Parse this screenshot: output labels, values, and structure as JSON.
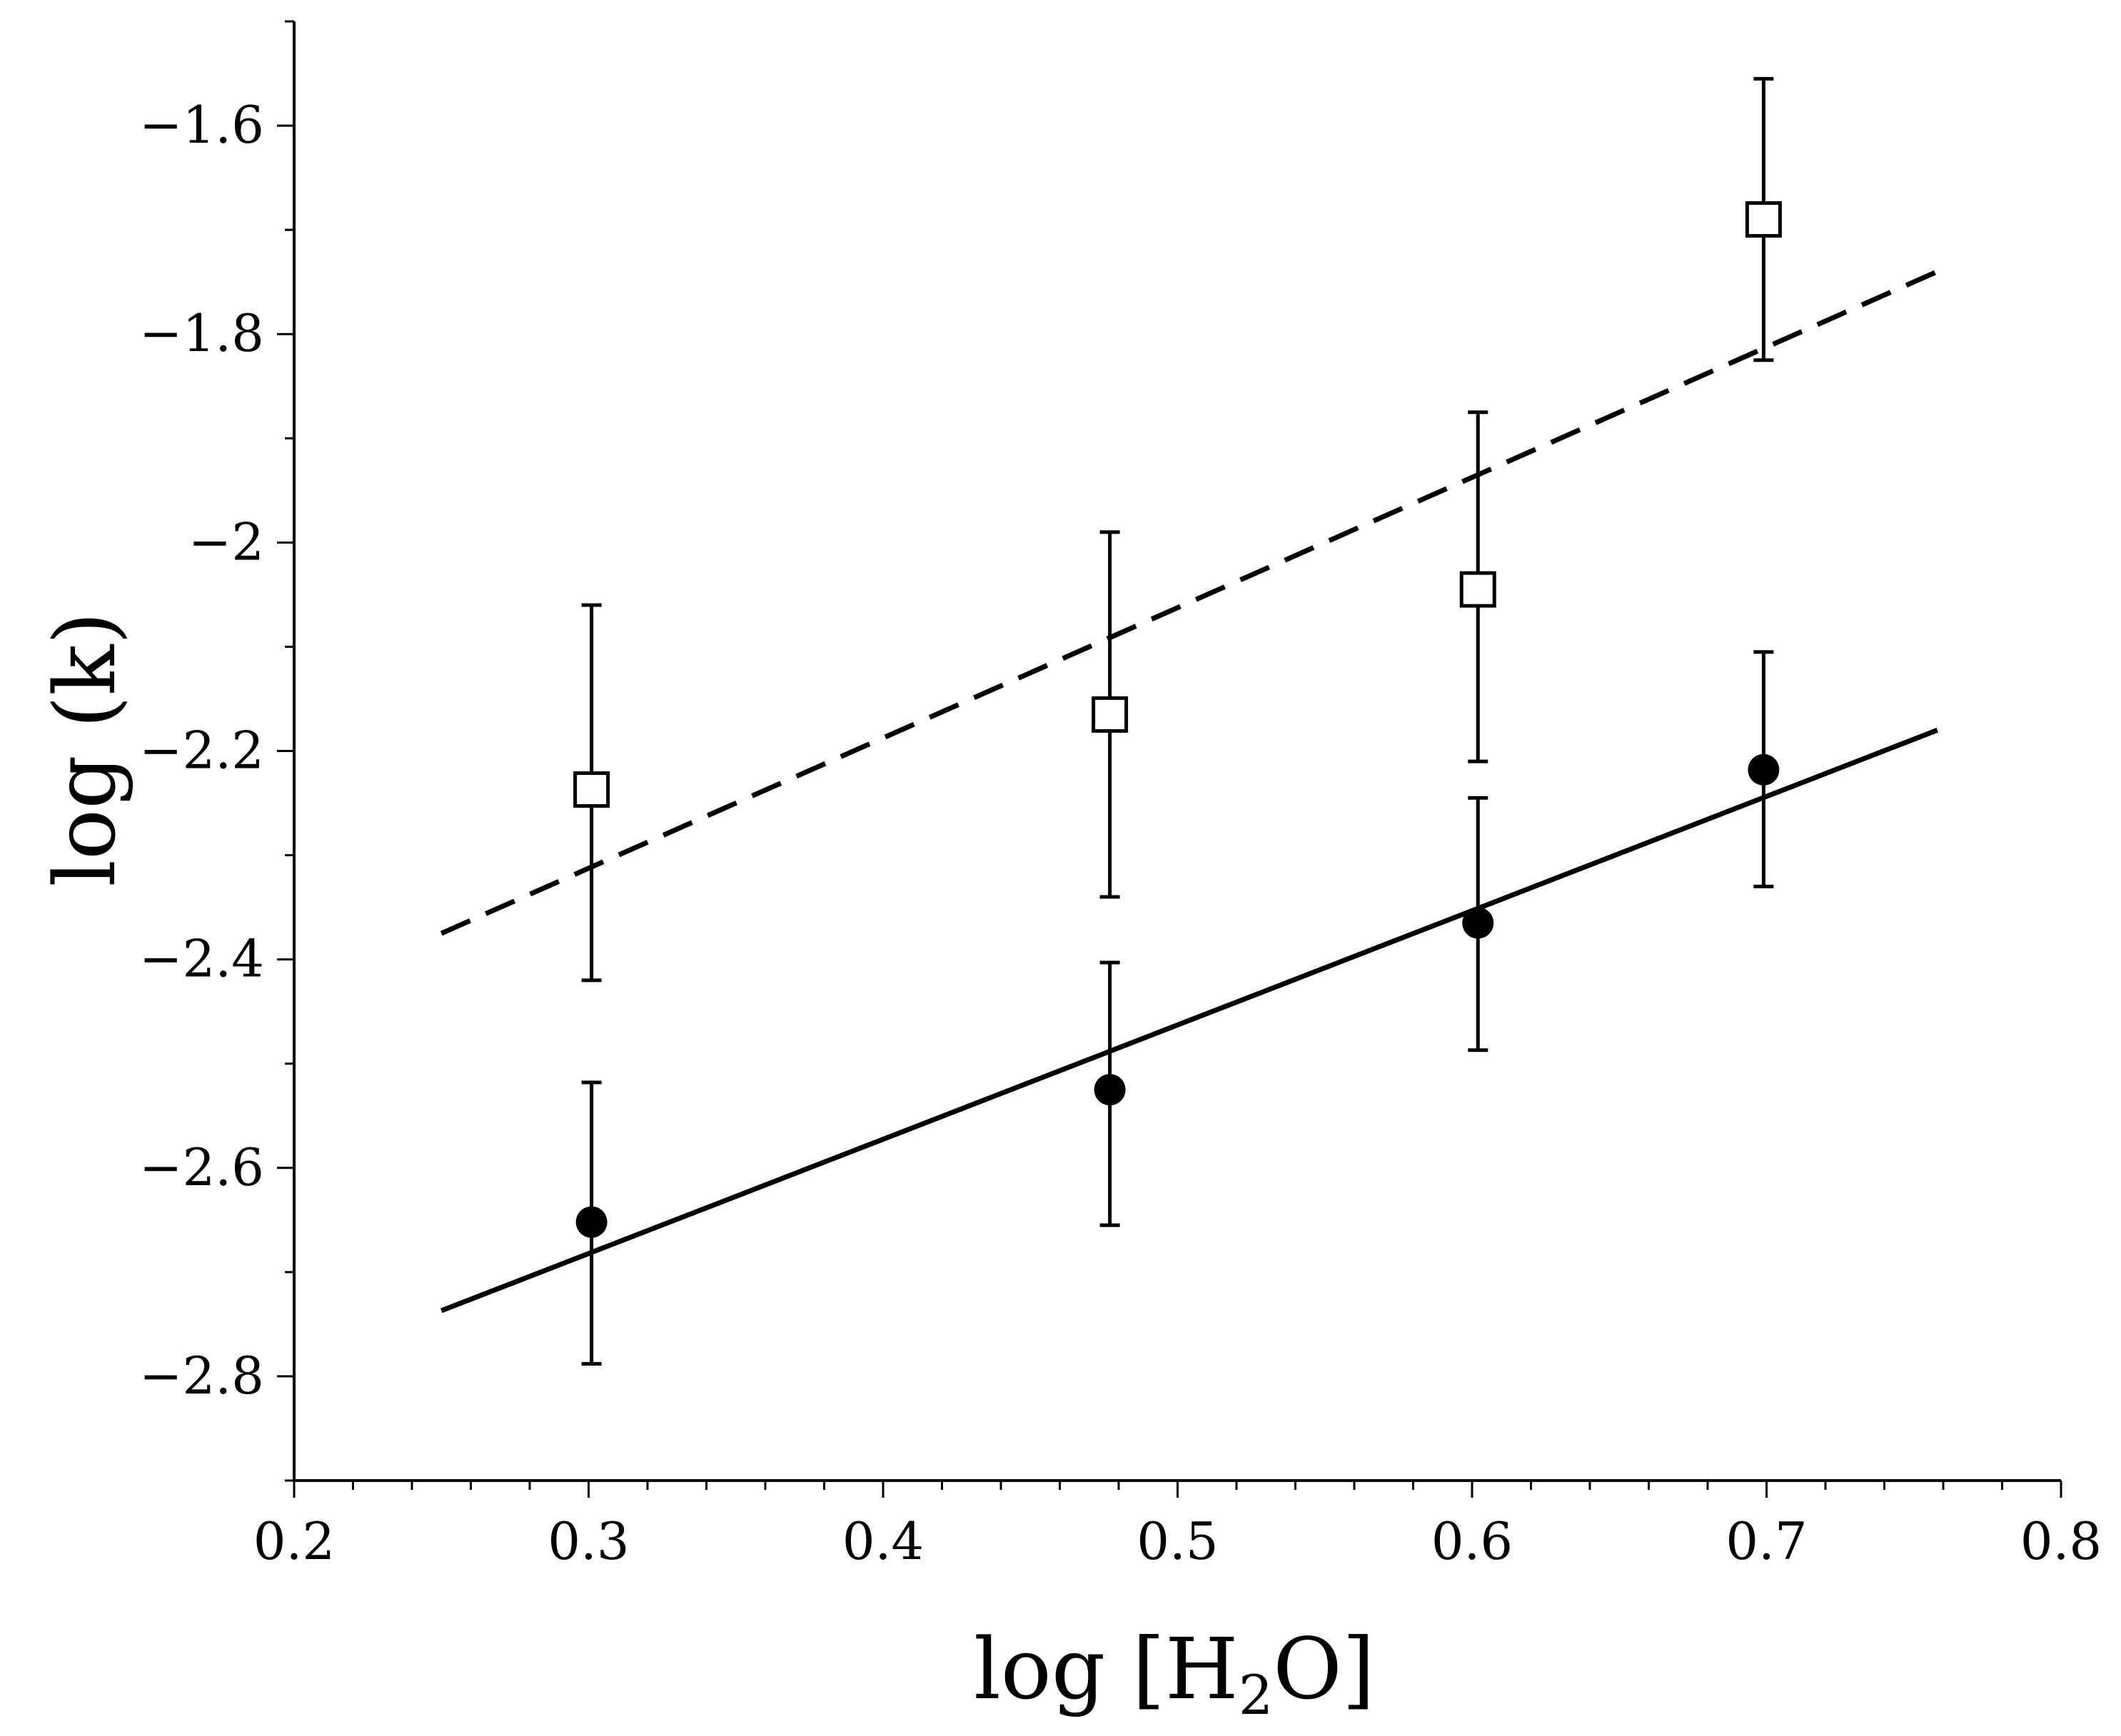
{
  "chart_data": {
    "type": "scatter",
    "title": "",
    "xlabel_parts": [
      "log [H",
      "2",
      "O]"
    ],
    "ylabel": "log (k)",
    "xlim": [
      0.2,
      0.8
    ],
    "ylim": [
      -2.9,
      -1.5
    ],
    "x_major_ticks": [
      0.2,
      0.3,
      0.4,
      0.5,
      0.6,
      0.7,
      0.8
    ],
    "x_tick_labels": [
      "0.2",
      "0.3",
      "0.4",
      "0.5",
      "0.6",
      "0.7",
      "0.8"
    ],
    "x_minor_step": 0.02,
    "y_major_ticks": [
      -1.6,
      -1.8,
      -2.0,
      -2.2,
      -2.4,
      -2.6,
      -2.8
    ],
    "y_tick_labels": [
      "−1.6",
      "−1.8",
      "−2",
      "−2.2",
      "−2.4",
      "−2.6",
      "−2.8"
    ],
    "y_minor_step": 0.1,
    "grid": false,
    "series": [
      {
        "name": "open squares",
        "marker": "square-open",
        "x": [
          0.301,
          0.477,
          0.602,
          0.699
        ],
        "y": [
          -2.237,
          -2.165,
          -2.045,
          -1.69
        ],
        "err_low": [
          -2.42,
          -2.34,
          -2.21,
          -1.825
        ],
        "err_high": [
          -2.06,
          -1.99,
          -1.875,
          -1.555
        ],
        "fit": {
          "style": "dashed",
          "x": [
            0.25,
            0.758
          ],
          "y": [
            -2.375,
            -1.74
          ]
        }
      },
      {
        "name": "filled circles",
        "marker": "circle-filled",
        "x": [
          0.301,
          0.477,
          0.602,
          0.699
        ],
        "y": [
          -2.652,
          -2.525,
          -2.365,
          -2.218
        ],
        "err_low": [
          -2.788,
          -2.655,
          -2.487,
          -2.33
        ],
        "err_high": [
          -2.518,
          -2.403,
          -2.245,
          -2.105
        ],
        "fit": {
          "style": "solid",
          "x": [
            0.25,
            0.758
          ],
          "y": [
            -2.737,
            -2.18
          ]
        }
      }
    ]
  }
}
